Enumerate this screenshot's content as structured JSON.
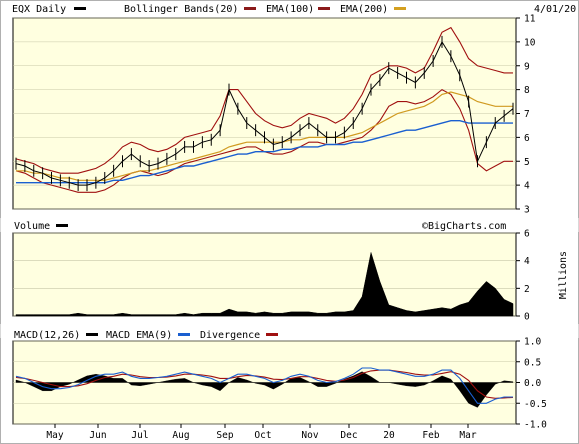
{
  "chart_data": {
    "type": "line",
    "header": {
      "symbol_label": "EQX Daily",
      "legend": [
        {
          "label": "Bollinger Bands(20)",
          "color": "#8b1a1a"
        },
        {
          "label": "EMA(100)",
          "color": "#8b1a1a"
        },
        {
          "label": "EMA(200)",
          "color": "#d4a020"
        }
      ],
      "extra_legend_color": "#1a5fd0",
      "date": "4/01/20"
    },
    "price_panel": {
      "ylim": [
        3,
        11
      ],
      "yticks": [
        "3",
        "4",
        "5",
        "6",
        "7",
        "8",
        "9",
        "10",
        "11"
      ],
      "watermark": "©BigCharts.com",
      "colors": {
        "price": "#000000",
        "bollinger": "#a01010",
        "ema100": "#d09a20",
        "ema200": "#1a5fd0",
        "background": "#ffffe0"
      },
      "series": {
        "close": [
          4.9,
          4.8,
          4.6,
          4.5,
          4.3,
          4.2,
          4.1,
          4.0,
          4.0,
          4.1,
          4.3,
          4.6,
          5.0,
          5.3,
          5.0,
          4.8,
          4.9,
          5.1,
          5.3,
          5.6,
          5.6,
          5.8,
          5.9,
          6.3,
          8.0,
          7.2,
          6.6,
          6.3,
          6.0,
          5.7,
          5.8,
          6.0,
          6.3,
          6.6,
          6.3,
          6.0,
          6.0,
          6.2,
          6.6,
          7.2,
          8.0,
          8.4,
          8.9,
          8.7,
          8.5,
          8.3,
          8.7,
          9.2,
          10.0,
          9.4,
          8.6,
          7.5,
          5.0,
          5.8,
          6.6,
          6.9,
          7.2
        ],
        "bollinger_upper": [
          5.1,
          5.0,
          4.9,
          4.7,
          4.6,
          4.5,
          4.5,
          4.5,
          4.6,
          4.7,
          4.9,
          5.2,
          5.6,
          5.8,
          5.7,
          5.5,
          5.4,
          5.5,
          5.7,
          6.0,
          6.1,
          6.2,
          6.3,
          6.9,
          8.0,
          8.0,
          7.5,
          7.0,
          6.7,
          6.5,
          6.4,
          6.5,
          6.8,
          7.0,
          6.9,
          6.8,
          6.6,
          6.8,
          7.2,
          7.8,
          8.6,
          8.8,
          9.0,
          9.0,
          8.9,
          8.7,
          8.9,
          9.6,
          10.4,
          10.6,
          10.0,
          9.3,
          9.0,
          8.9,
          8.8,
          8.7,
          8.7
        ],
        "bollinger_lower": [
          4.6,
          4.5,
          4.3,
          4.1,
          4.0,
          3.9,
          3.8,
          3.7,
          3.7,
          3.7,
          3.8,
          4.0,
          4.3,
          4.5,
          4.6,
          4.5,
          4.4,
          4.5,
          4.7,
          4.9,
          5.0,
          5.1,
          5.2,
          5.3,
          5.4,
          5.5,
          5.6,
          5.6,
          5.4,
          5.3,
          5.3,
          5.4,
          5.6,
          5.8,
          5.8,
          5.7,
          5.7,
          5.8,
          5.9,
          6.0,
          6.3,
          6.7,
          7.3,
          7.5,
          7.5,
          7.4,
          7.5,
          7.7,
          8.0,
          7.8,
          7.2,
          6.3,
          4.9,
          4.6,
          4.8,
          5.0,
          5.0
        ],
        "ema100": [
          4.6,
          4.6,
          4.5,
          4.5,
          4.4,
          4.3,
          4.3,
          4.2,
          4.2,
          4.2,
          4.2,
          4.3,
          4.4,
          4.5,
          4.6,
          4.6,
          4.7,
          4.8,
          4.9,
          5.0,
          5.1,
          5.2,
          5.3,
          5.4,
          5.6,
          5.7,
          5.8,
          5.8,
          5.8,
          5.8,
          5.8,
          5.9,
          5.9,
          6.0,
          6.0,
          6.0,
          6.0,
          6.0,
          6.1,
          6.2,
          6.4,
          6.6,
          6.8,
          7.0,
          7.1,
          7.2,
          7.3,
          7.5,
          7.8,
          7.9,
          7.8,
          7.7,
          7.5,
          7.4,
          7.3,
          7.3,
          7.3
        ],
        "ema200": [
          4.1,
          4.1,
          4.1,
          4.1,
          4.1,
          4.1,
          4.1,
          4.1,
          4.1,
          4.1,
          4.1,
          4.2,
          4.2,
          4.3,
          4.4,
          4.4,
          4.5,
          4.6,
          4.7,
          4.8,
          4.8,
          4.9,
          5.0,
          5.1,
          5.2,
          5.3,
          5.3,
          5.4,
          5.4,
          5.4,
          5.5,
          5.5,
          5.6,
          5.6,
          5.6,
          5.7,
          5.7,
          5.7,
          5.8,
          5.8,
          5.9,
          6.0,
          6.1,
          6.2,
          6.3,
          6.3,
          6.4,
          6.5,
          6.6,
          6.7,
          6.7,
          6.6,
          6.6,
          6.6,
          6.6,
          6.6,
          6.6
        ]
      }
    },
    "volume_panel": {
      "label": "Volume",
      "ylim": [
        0,
        6
      ],
      "yticks": [
        "0",
        "2",
        "4",
        "6"
      ],
      "axis_title": "Millions",
      "values": [
        0.1,
        0.1,
        0.1,
        0.1,
        0.1,
        0.1,
        0.1,
        0.2,
        0.1,
        0.1,
        0.1,
        0.1,
        0.2,
        0.1,
        0.1,
        0.1,
        0.1,
        0.1,
        0.1,
        0.2,
        0.1,
        0.2,
        0.2,
        0.2,
        0.5,
        0.3,
        0.3,
        0.2,
        0.3,
        0.2,
        0.2,
        0.3,
        0.3,
        0.3,
        0.2,
        0.2,
        0.3,
        0.3,
        0.4,
        1.4,
        4.6,
        2.5,
        0.8,
        0.6,
        0.4,
        0.3,
        0.4,
        0.5,
        0.6,
        0.5,
        0.8,
        1.0,
        1.8,
        2.5,
        2.0,
        1.2,
        0.9
      ]
    },
    "macd_panel": {
      "legend": [
        {
          "label": "MACD(12,26)",
          "color": "#000000"
        },
        {
          "label": "MACD EMA(9)",
          "color": "#1a5fd0"
        },
        {
          "label": "Divergence",
          "color": "#a01010"
        }
      ],
      "ylim": [
        -1.0,
        1.0
      ],
      "yticks": [
        "1.0",
        "0.5",
        "0.0",
        "-0.5",
        "-1.0"
      ],
      "macd": [
        0.15,
        0.1,
        0.0,
        -0.1,
        -0.15,
        -0.15,
        -0.12,
        -0.05,
        0.05,
        0.15,
        0.2,
        0.2,
        0.25,
        0.15,
        0.1,
        0.1,
        0.12,
        0.15,
        0.2,
        0.25,
        0.2,
        0.15,
        0.1,
        0.0,
        0.1,
        0.2,
        0.2,
        0.15,
        0.1,
        0.0,
        0.05,
        0.15,
        0.2,
        0.15,
        0.05,
        0.0,
        0.02,
        0.1,
        0.2,
        0.35,
        0.35,
        0.3,
        0.3,
        0.25,
        0.2,
        0.15,
        0.15,
        0.2,
        0.3,
        0.3,
        0.1,
        -0.2,
        -0.5,
        -0.5,
        -0.4,
        -0.35,
        -0.35
      ],
      "signal": [
        0.12,
        0.1,
        0.05,
        0.0,
        -0.05,
        -0.1,
        -0.1,
        -0.08,
        -0.03,
        0.05,
        0.12,
        0.15,
        0.2,
        0.18,
        0.14,
        0.12,
        0.12,
        0.13,
        0.16,
        0.2,
        0.2,
        0.18,
        0.15,
        0.1,
        0.1,
        0.14,
        0.17,
        0.16,
        0.13,
        0.08,
        0.07,
        0.1,
        0.14,
        0.14,
        0.1,
        0.05,
        0.03,
        0.06,
        0.12,
        0.22,
        0.28,
        0.3,
        0.3,
        0.27,
        0.24,
        0.2,
        0.18,
        0.18,
        0.22,
        0.26,
        0.2,
        0.05,
        -0.2,
        -0.35,
        -0.38,
        -0.37,
        -0.36
      ]
    },
    "x_axis": {
      "tick_labels": [
        "May",
        "Jun",
        "Jul",
        "Aug",
        "Sep",
        "Oct",
        "Nov",
        "Dec",
        "20",
        "Feb",
        "Mar"
      ]
    }
  }
}
